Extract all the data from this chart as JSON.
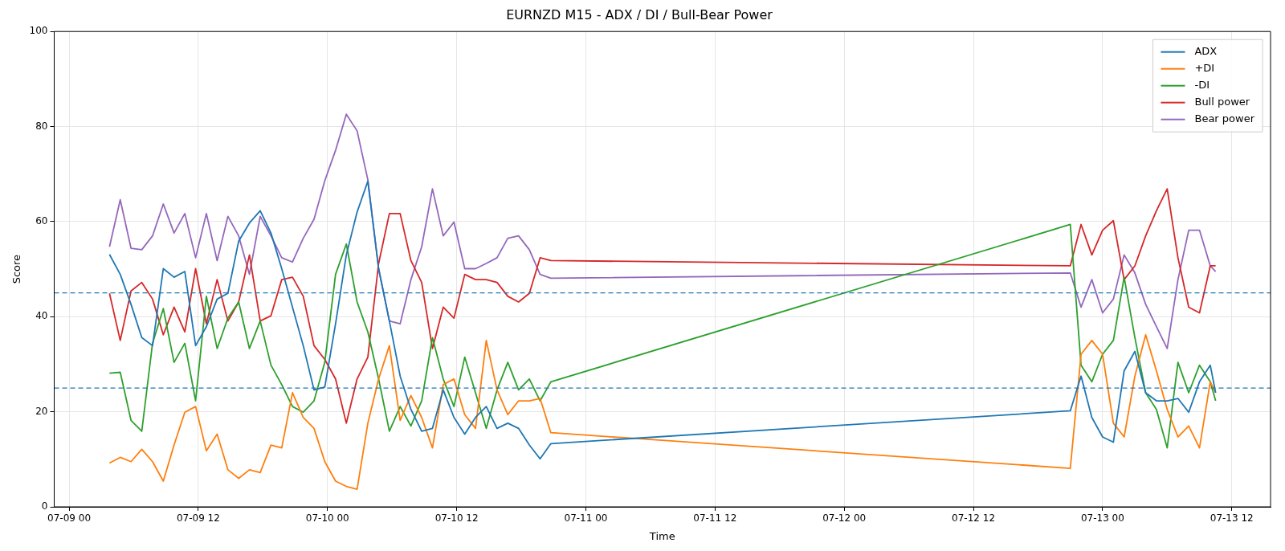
{
  "chart_data": {
    "type": "line",
    "title": "EURNZD M15 - ADX / DI / Bull-Bear Power",
    "xlabel": "Time",
    "ylabel": "Score",
    "x": [
      "--07-09T03:45",
      "--07-09T04:45",
      "--07-09T05:45",
      "--07-09T06:45",
      "--07-09T07:45",
      "--07-09T08:45",
      "--07-09T09:45",
      "--07-09T10:45",
      "--07-09T11:45",
      "--07-09T12:45",
      "--07-09T13:45",
      "--07-09T14:45",
      "--07-09T15:45",
      "--07-09T16:45",
      "--07-09T17:45",
      "--07-09T18:45",
      "--07-09T19:45",
      "--07-09T20:45",
      "--07-09T21:45",
      "--07-09T22:45",
      "--07-09T23:45",
      "--07-10T00:45",
      "--07-10T01:45",
      "--07-10T02:45",
      "--07-10T03:45",
      "--07-10T04:45",
      "--07-10T05:45",
      "--07-10T06:45",
      "--07-10T07:45",
      "--07-10T08:45",
      "--07-10T09:45",
      "--07-10T10:45",
      "--07-10T11:45",
      "--07-10T12:45",
      "--07-10T13:45",
      "--07-10T14:45",
      "--07-10T15:45",
      "--07-10T16:45",
      "--07-10T17:45",
      "--07-10T18:45",
      "--07-10T19:45",
      "--07-10T20:45",
      "--07-12T21:00",
      "--07-12T22:00",
      "--07-12T23:00",
      "--07-13T00:00",
      "--07-13T01:00",
      "--07-13T02:00",
      "--07-13T03:00",
      "--07-13T04:00",
      "--07-13T05:00",
      "--07-13T06:00",
      "--07-13T07:00",
      "--07-13T08:00",
      "--07-13T09:00",
      "--07-13T10:00",
      "--07-13T10:30"
    ],
    "series": [
      {
        "name": "ADX",
        "color": "#1f77b4",
        "values": [
          53.1,
          48.9,
          42.6,
          35.6,
          33.9,
          50.1,
          48.3,
          49.5,
          33.9,
          37.9,
          43.7,
          44.9,
          55.9,
          59.7,
          62.3,
          57.6,
          50.1,
          42.0,
          33.9,
          24.6,
          25.2,
          38.5,
          53.0,
          62.0,
          68.5,
          50.1,
          39.1,
          27.5,
          20.5,
          15.9,
          16.5,
          24.6,
          18.8,
          15.3,
          18.8,
          21.1,
          16.5,
          17.6,
          16.5,
          13.0,
          10.1,
          13.3,
          20.2,
          27.5,
          18.8,
          14.7,
          13.6,
          28.6,
          32.7,
          24.0,
          22.3,
          22.3,
          22.8,
          19.9,
          26.3,
          29.8,
          24.0
        ]
      },
      {
        "name": "+DI",
        "color": "#ff7f0e",
        "values": [
          9.2,
          10.4,
          9.5,
          12.1,
          9.5,
          5.4,
          13.0,
          19.9,
          21.1,
          11.8,
          15.3,
          7.8,
          6.0,
          7.8,
          7.2,
          13.0,
          12.4,
          24.0,
          18.8,
          16.5,
          9.5,
          5.4,
          4.3,
          3.7,
          17.6,
          26.9,
          33.9,
          18.2,
          23.4,
          18.8,
          12.4,
          25.7,
          26.9,
          19.4,
          16.5,
          35.0,
          24.6,
          19.4,
          22.3,
          22.3,
          22.8,
          15.6,
          8.1,
          32.1,
          35.0,
          32.1,
          17.6,
          14.7,
          27.5,
          36.2,
          28.6,
          20.5,
          14.7,
          17.0,
          12.4,
          26.3,
          24.0
        ]
      },
      {
        "name": "-DI",
        "color": "#2ca02c",
        "values": [
          28.1,
          28.3,
          18.2,
          15.9,
          34.4,
          41.7,
          30.4,
          34.4,
          22.3,
          44.3,
          33.3,
          39.7,
          43.1,
          33.3,
          39.1,
          29.8,
          25.7,
          21.1,
          19.9,
          22.3,
          30.4,
          48.9,
          55.3,
          43.1,
          36.8,
          26.9,
          15.9,
          21.1,
          17.0,
          22.3,
          35.6,
          26.9,
          21.1,
          31.5,
          24.0,
          16.5,
          24.6,
          30.4,
          24.6,
          26.9,
          22.3,
          26.3,
          59.4,
          29.8,
          26.3,
          32.1,
          35.0,
          48.3,
          35.6,
          24.0,
          20.5,
          12.4,
          30.4,
          24.0,
          29.8,
          26.3,
          22.3
        ]
      },
      {
        "name": "Bull power",
        "color": "#d62728",
        "values": [
          44.9,
          35.0,
          45.4,
          47.2,
          43.7,
          36.2,
          42.0,
          36.8,
          50.1,
          38.5,
          47.8,
          39.1,
          43.1,
          53.0,
          39.1,
          40.2,
          47.8,
          48.3,
          44.3,
          33.9,
          31.0,
          26.9,
          17.6,
          26.9,
          31.5,
          51.2,
          61.7,
          61.7,
          51.8,
          47.2,
          33.3,
          42.0,
          39.7,
          48.9,
          47.8,
          47.8,
          47.2,
          44.3,
          43.1,
          44.9,
          52.4,
          51.8,
          50.7,
          59.4,
          53.0,
          58.2,
          60.2,
          47.8,
          50.7,
          57.0,
          62.3,
          66.9,
          52.4,
          42.0,
          40.8,
          50.7,
          50.7
        ]
      },
      {
        "name": "Bear power",
        "color": "#9467bd",
        "values": [
          54.7,
          64.6,
          54.4,
          54.1,
          57.0,
          63.7,
          57.6,
          61.7,
          52.4,
          61.7,
          51.8,
          61.1,
          57.0,
          48.9,
          61.1,
          57.0,
          52.4,
          51.5,
          56.5,
          60.5,
          68.6,
          75.0,
          82.6,
          79.1,
          68.8,
          50.1,
          39.1,
          38.5,
          47.8,
          54.7,
          66.9,
          57.0,
          59.9,
          50.1,
          50.1,
          51.2,
          52.4,
          56.5,
          57.0,
          54.1,
          48.9,
          48.1,
          49.2,
          42.0,
          47.8,
          40.8,
          43.7,
          53.0,
          49.2,
          42.6,
          37.9,
          33.3,
          47.8,
          58.2,
          58.2,
          50.7,
          49.5
        ]
      }
    ],
    "xlim": [
      "--07-08T22:37",
      "--07-13T15:36"
    ],
    "xticks": [
      {
        "value": "--07-09T00:00",
        "label": "07-09 00"
      },
      {
        "value": "--07-09T12:00",
        "label": "07-09 12"
      },
      {
        "value": "--07-10T00:00",
        "label": "07-10 00"
      },
      {
        "value": "--07-10T12:00",
        "label": "07-10 12"
      },
      {
        "value": "--07-11T00:00",
        "label": "07-11 00"
      },
      {
        "value": "--07-11T12:00",
        "label": "07-11 12"
      },
      {
        "value": "--07-12T00:00",
        "label": "07-12 00"
      },
      {
        "value": "--07-12T12:00",
        "label": "07-12 12"
      },
      {
        "value": "--07-13T00:00",
        "label": "07-13 00"
      },
      {
        "value": "--07-13T12:00",
        "label": "07-13 12"
      }
    ],
    "ylim": [
      0,
      100
    ],
    "yticks": [
      0,
      20,
      40,
      60,
      80,
      100
    ],
    "ref_lines": [
      {
        "axis": "y",
        "value": 45,
        "color": "#1f77b4",
        "line_style": "dashed"
      },
      {
        "axis": "y",
        "value": 25,
        "color": "#1f77b4",
        "line_style": "dashed"
      }
    ],
    "grid": true,
    "legend": "top right",
    "line_style": "solid",
    "marker": "none"
  }
}
